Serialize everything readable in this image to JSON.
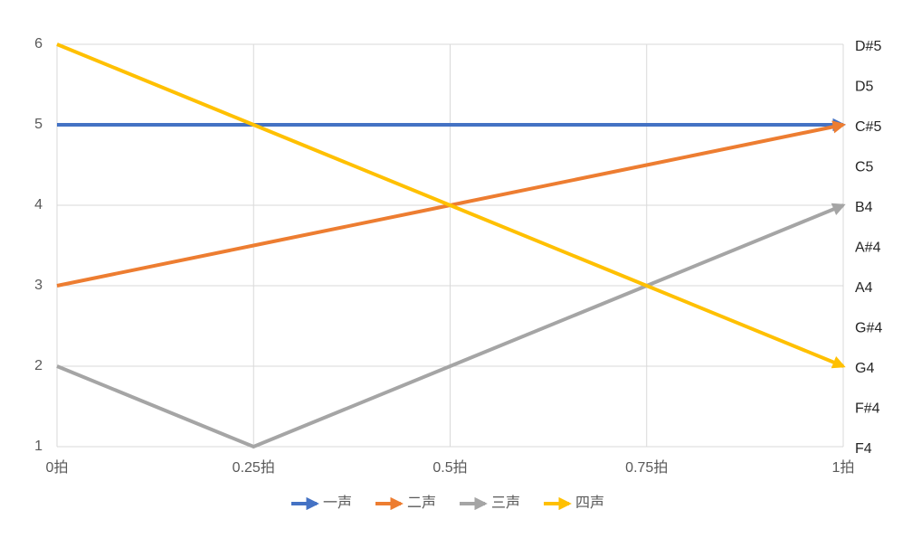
{
  "chart_data": {
    "type": "line",
    "x": [
      0,
      0.25,
      0.5,
      0.75,
      1
    ],
    "xlim": [
      0,
      1
    ],
    "xticks": [
      {
        "value": 0,
        "label": "0拍"
      },
      {
        "value": 0.25,
        "label": "0.25拍"
      },
      {
        "value": 0.5,
        "label": "0.5拍"
      },
      {
        "value": 0.75,
        "label": "0.75拍"
      },
      {
        "value": 1,
        "label": "1拍"
      }
    ],
    "ylim": [
      1,
      6
    ],
    "yticks": [
      1,
      2,
      3,
      4,
      5,
      6
    ],
    "y2lim": [
      1,
      6
    ],
    "y2ticks": [
      {
        "value": 1,
        "label": "F4"
      },
      {
        "value": 1.5,
        "label": "F#4"
      },
      {
        "value": 2,
        "label": "G4"
      },
      {
        "value": 2.5,
        "label": "G#4"
      },
      {
        "value": 3,
        "label": "A4"
      },
      {
        "value": 3.5,
        "label": "A#4"
      },
      {
        "value": 4,
        "label": "B4"
      },
      {
        "value": 4.5,
        "label": "C5"
      },
      {
        "value": 5,
        "label": "C#5"
      },
      {
        "value": 5.5,
        "label": "D5"
      },
      {
        "value": 6,
        "label": "D#5"
      }
    ],
    "grid": true,
    "legend": "bottom",
    "series": [
      {
        "name": "一声",
        "color": "#4472c4",
        "values": [
          5,
          5,
          5,
          5,
          5
        ]
      },
      {
        "name": "二声",
        "color": "#ed7d31",
        "values": [
          3,
          3.5,
          4,
          4.5,
          5
        ]
      },
      {
        "name": "三声",
        "color": "#a5a5a5",
        "values": [
          2,
          1,
          2,
          3,
          4
        ]
      },
      {
        "name": "四声",
        "color": "#ffc000",
        "values": [
          6,
          5,
          4,
          3,
          2
        ]
      }
    ]
  }
}
